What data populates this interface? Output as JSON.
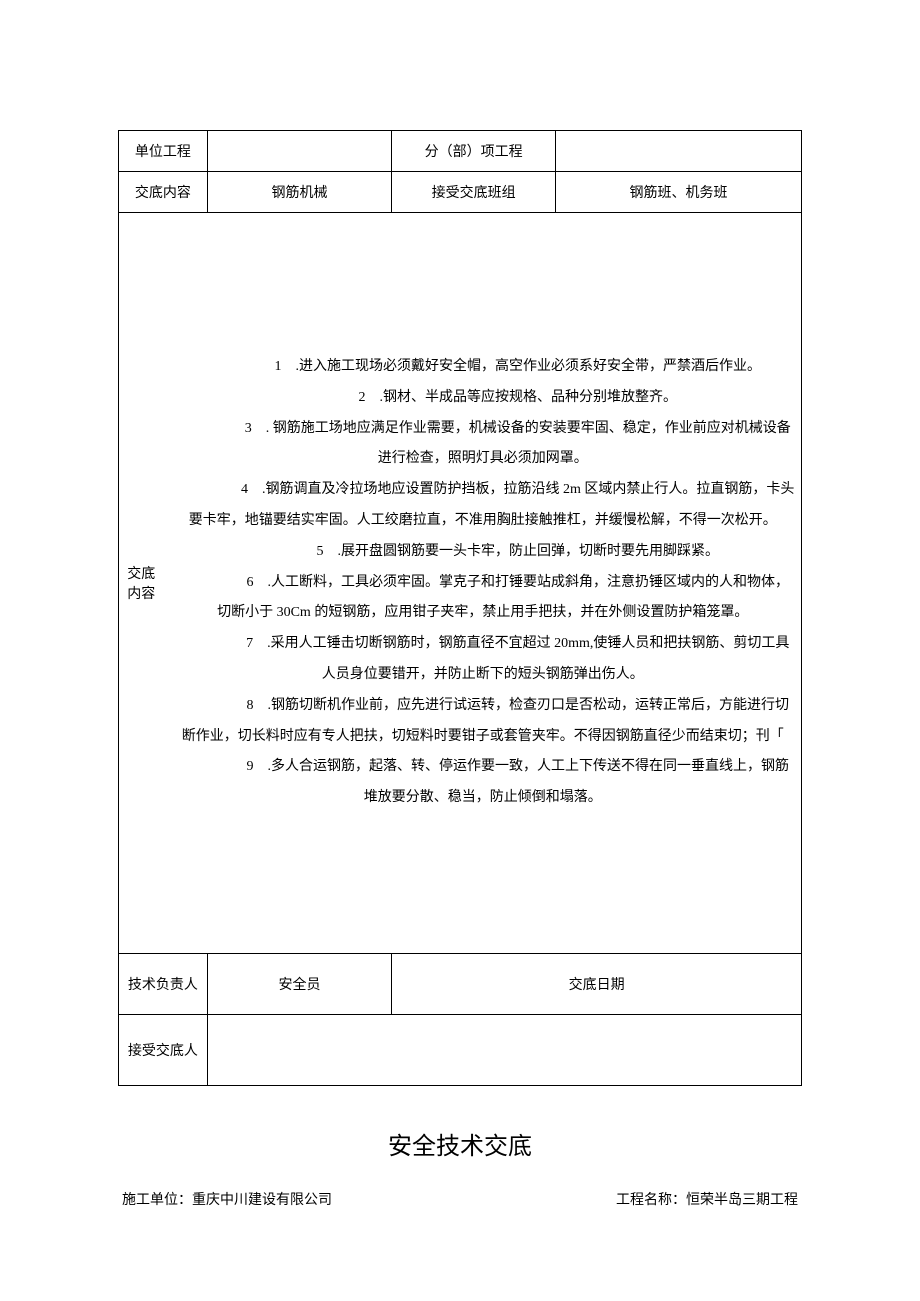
{
  "row1": {
    "c1_label": "单位工程",
    "c2_value": "",
    "c3_label": "分（部）项工程",
    "c4_value": ""
  },
  "row2": {
    "c1_label": "交底内容",
    "c2_value": "钢筋机械",
    "c3_label": "接受交底班组",
    "c4_value": "钢筋班、机务班"
  },
  "content_label": "交底内容",
  "items": [
    ".进入施工现场必须戴好安全帽，高空作业必须系好安全带，严禁酒后作业。",
    ".钢材、半成品等应按规格、品种分别堆放整齐。",
    ". 钢筋施工场地应满足作业需要，机械设备的安装要牢固、稳定，作业前应对机械设备进行检查，照明灯具必须加网罩。",
    ".钢筋调直及冷拉场地应设置防护挡板，拉筋沿线 2m 区域内禁止行人。拉直钢筋，卡头要卡牢，地锚要结实牢固。人工绞磨拉直，不准用胸肚接触推杠，并缓慢松解，不得一次松开。",
    ".展开盘圆钢筋要一头卡牢，防止回弹，切断时要先用脚踩紧。",
    ".人工断料，工具必须牢固。掌克子和打锤要站成斜角，注意扔锤区域内的人和物体，切断小于 30Cm 的短钢筋，应用钳子夹牢，禁止用手把扶，并在外侧设置防护箱笼罩。",
    ".采用人工锤击切断钢筋时，钢筋直径不宜超过 20mm,使锤人员和把扶钢筋、剪切工具人员身位要错开，并防止断下的短头钢筋弹出伤人。",
    ".钢筋切断机作业前，应先进行试运转，检查刃口是否松动，运转正常后，方能进行切断作业，切长料时应有专人把扶，切短料时要钳子或套管夹牢。不得因钢筋直径少而结束切；刊「",
    ".多人合运钢筋，起落、转、停运作要一致，人工上下传送不得在同一垂直线上，钢筋堆放要分散、稳当，防止倾倒和塌落。"
  ],
  "sig": {
    "tech_leader": "技术负责人",
    "safety_officer": "安全员",
    "date": "交底日期",
    "acceptor": "接受交底人"
  },
  "footer": {
    "title": "安全技术交底",
    "left": "施工单位：重庆中川建设有限公司",
    "right": "工程名称：恒荣半岛三期工程"
  }
}
